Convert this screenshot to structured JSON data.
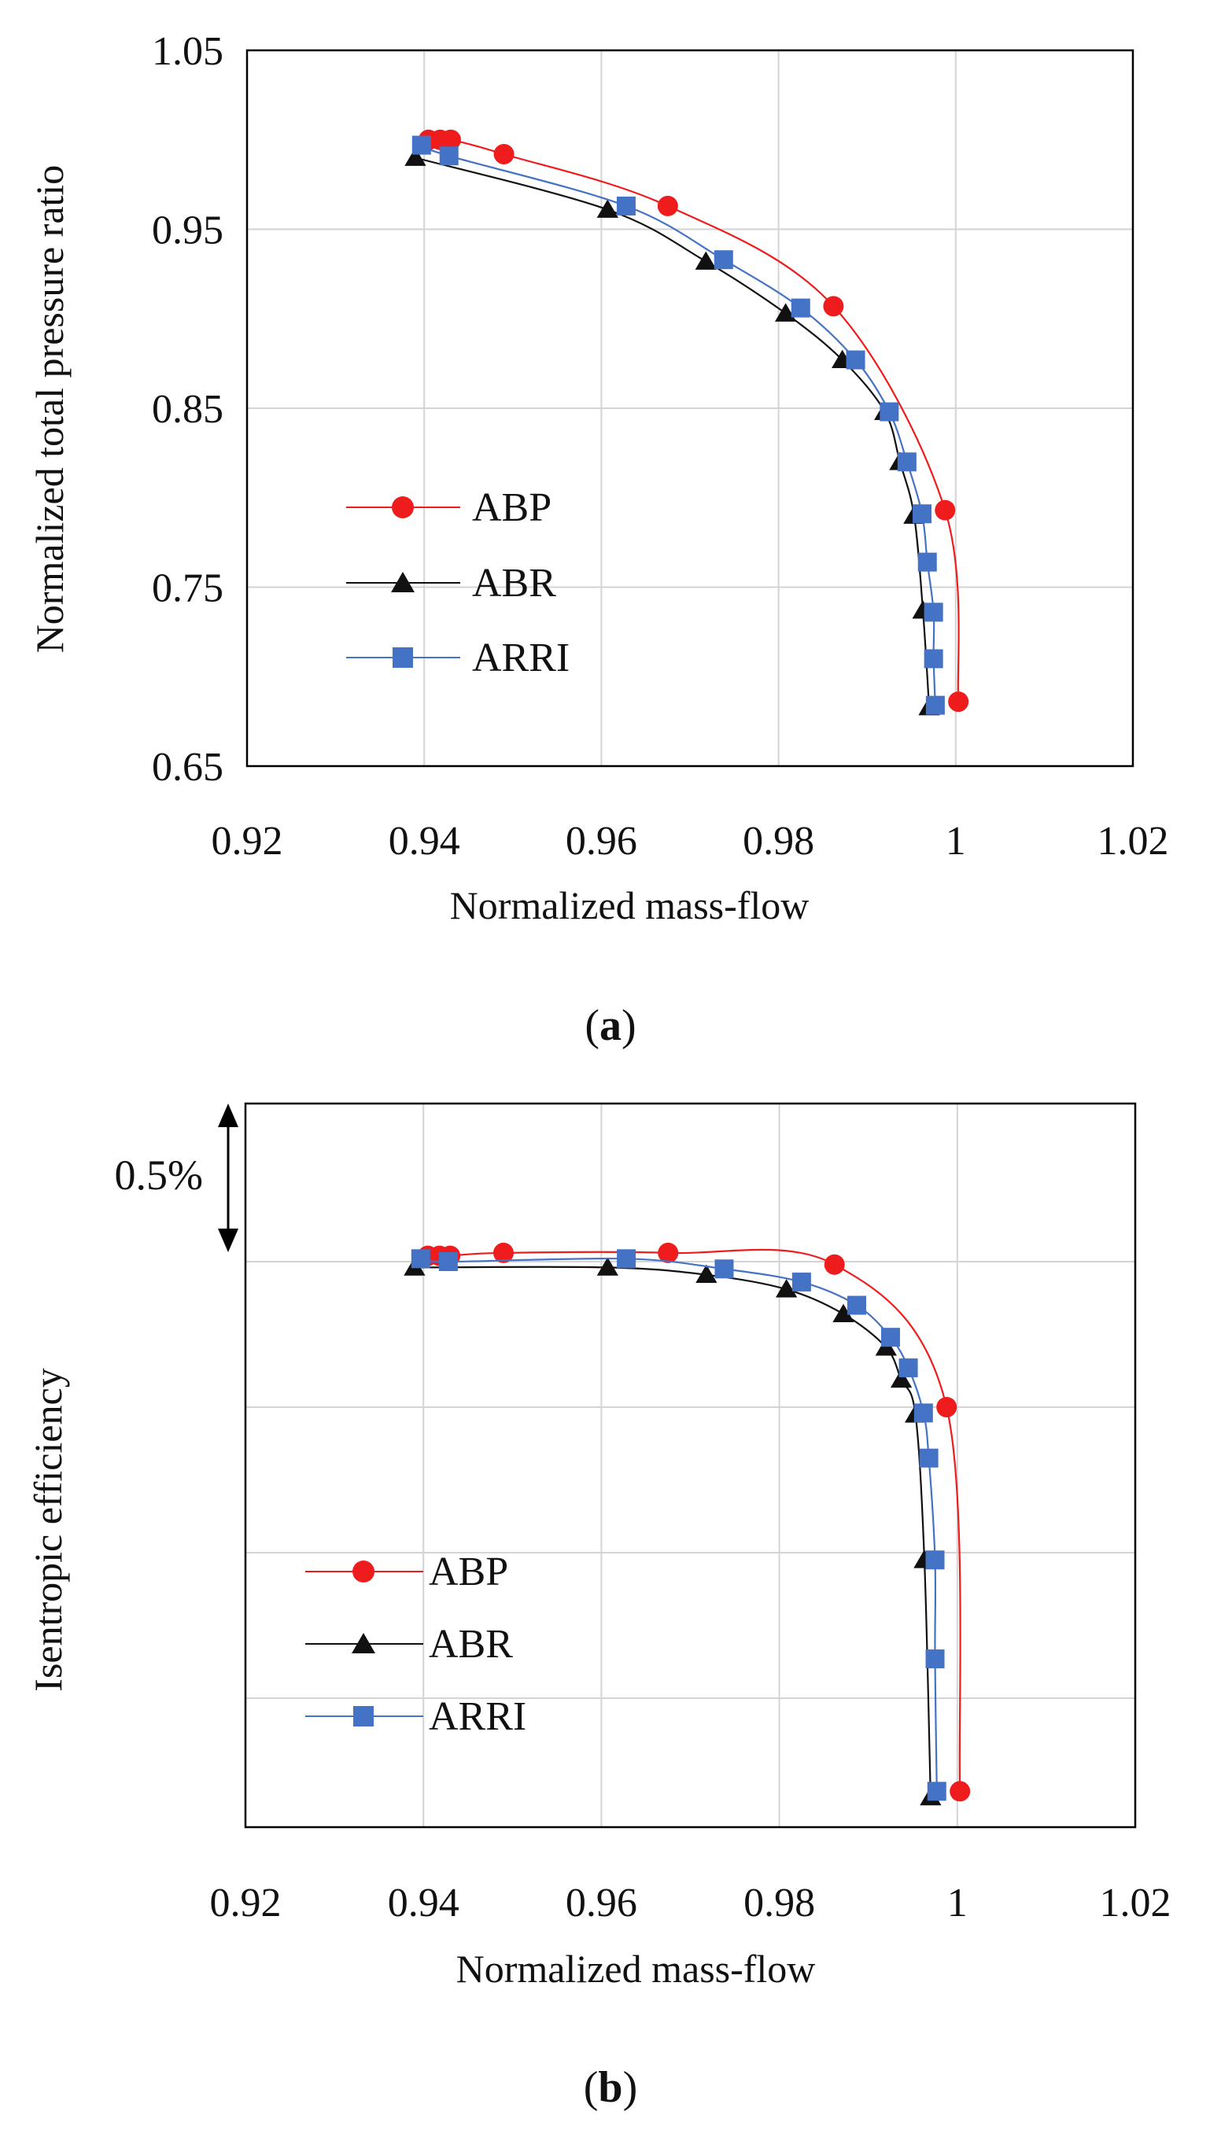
{
  "chart_data": [
    {
      "type": "line",
      "panel_label": "a",
      "title": "",
      "xlabel": "Normalized mass-flow",
      "ylabel": "Normalized total pressure ratio",
      "xlim": [
        0.92,
        1.02
      ],
      "ylim": [
        0.65,
        1.05
      ],
      "xticks": [
        "0.92",
        "0.94",
        "0.96",
        "0.98",
        "1",
        "1.02"
      ],
      "yticks": [
        "0.65",
        "0.75",
        "0.85",
        "0.95",
        "1.05"
      ],
      "grid": true,
      "legend_position": "middle-left",
      "series": [
        {
          "name": "ABP",
          "color": "#ee1c1c",
          "marker": "circle",
          "points": [
            [
              0.9405,
              1.0
            ],
            [
              0.9418,
              1.0
            ],
            [
              0.943,
              1.0
            ],
            [
              0.949,
              0.992
            ],
            [
              0.9675,
              0.963
            ],
            [
              0.9862,
              0.907
            ],
            [
              0.9988,
              0.793
            ],
            [
              1.0003,
              0.686
            ]
          ]
        },
        {
          "name": "ABR",
          "color": "#111111",
          "marker": "triangle",
          "points": [
            [
              0.939,
              0.99
            ],
            [
              0.9607,
              0.961
            ],
            [
              0.9718,
              0.932
            ],
            [
              0.9808,
              0.903
            ],
            [
              0.9872,
              0.877
            ],
            [
              0.992,
              0.848
            ],
            [
              0.9937,
              0.82
            ],
            [
              0.9953,
              0.79
            ],
            [
              0.9963,
              0.737
            ],
            [
              0.997,
              0.683
            ]
          ]
        },
        {
          "name": "ARRI",
          "color": "#4472c4",
          "marker": "square",
          "points": [
            [
              0.9397,
              0.997
            ],
            [
              0.9428,
              0.991
            ],
            [
              0.9628,
              0.963
            ],
            [
              0.9738,
              0.933
            ],
            [
              0.9825,
              0.906
            ],
            [
              0.9887,
              0.877
            ],
            [
              0.9925,
              0.848
            ],
            [
              0.9945,
              0.82
            ],
            [
              0.9962,
              0.791
            ],
            [
              0.9968,
              0.764
            ],
            [
              0.9975,
              0.736
            ],
            [
              0.9975,
              0.71
            ],
            [
              0.9977,
              0.684
            ]
          ]
        }
      ]
    },
    {
      "type": "line",
      "panel_label": "b",
      "title": "",
      "xlabel": "Normalized mass-flow",
      "ylabel": "Isentropic efficiency",
      "scale_annotation": "0.5%",
      "xlim": [
        0.92,
        1.02
      ],
      "ylim": [
        0,
        4
      ],
      "y_units_note": "relative efficiency, one grid division = 0.5%",
      "xticks": [
        "0.92",
        "0.94",
        "0.96",
        "0.98",
        "1",
        "1.02"
      ],
      "yticks": [],
      "grid": true,
      "legend_position": "bottom-left",
      "series": [
        {
          "name": "ABP",
          "color": "#ee1c1c",
          "marker": "circle",
          "points": [
            [
              0.9405,
              4.04
            ],
            [
              0.9418,
              4.04
            ],
            [
              0.943,
              4.04
            ],
            [
              0.949,
              4.06
            ],
            [
              0.9675,
              4.06
            ],
            [
              0.9862,
              3.98
            ],
            [
              0.9988,
              3.0
            ],
            [
              1.0003,
              0.36
            ]
          ]
        },
        {
          "name": "ABR",
          "color": "#111111",
          "marker": "triangle",
          "points": [
            [
              0.939,
              3.96
            ],
            [
              0.9607,
              3.96
            ],
            [
              0.9718,
              3.91
            ],
            [
              0.9808,
              3.81
            ],
            [
              0.9872,
              3.64
            ],
            [
              0.992,
              3.41
            ],
            [
              0.9937,
              3.19
            ],
            [
              0.9953,
              2.95
            ],
            [
              0.9963,
              1.95
            ],
            [
              0.997,
              0.32
            ]
          ]
        },
        {
          "name": "ARRI",
          "color": "#4472c4",
          "marker": "square",
          "points": [
            [
              0.9397,
              4.02
            ],
            [
              0.9428,
              4.0
            ],
            [
              0.9628,
              4.02
            ],
            [
              0.9738,
              3.95
            ],
            [
              0.9825,
              3.86
            ],
            [
              0.9887,
              3.7
            ],
            [
              0.9925,
              3.48
            ],
            [
              0.9945,
              3.27
            ],
            [
              0.9962,
              2.96
            ],
            [
              0.9968,
              2.65
            ],
            [
              0.9975,
              1.95
            ],
            [
              0.9975,
              1.27
            ],
            [
              0.9977,
              0.36
            ]
          ]
        }
      ]
    }
  ]
}
